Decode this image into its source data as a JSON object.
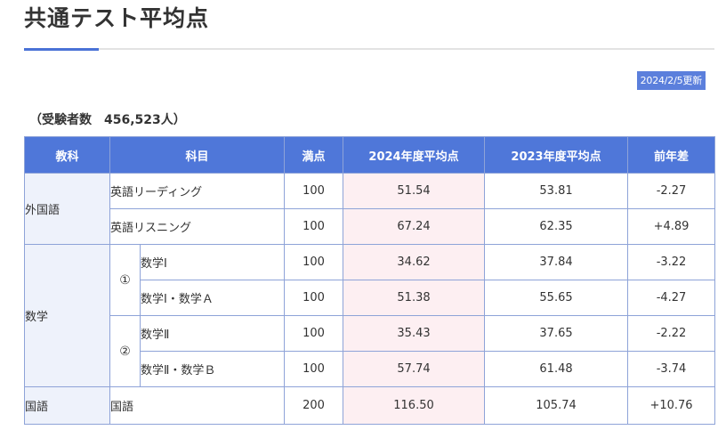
{
  "page": {
    "title": "共通テスト平均点",
    "update_badge": "2024/2/5更新",
    "examinees_label": "（受験者数",
    "examinees_count": "456,523人）"
  },
  "table": {
    "headers": [
      "教科",
      "科目",
      "満点",
      "2024年度平均点",
      "2023年度平均点",
      "前年差"
    ],
    "groups": {
      "foreign": "外国語",
      "math": "数学",
      "japanese": "国語"
    },
    "math_sections": [
      "①",
      "②"
    ],
    "rows": [
      {
        "subject": "英語リーディング",
        "full": "100",
        "avg2024": "51.54",
        "avg2023": "53.81",
        "diff": "-2.27"
      },
      {
        "subject": "英語リスニング",
        "full": "100",
        "avg2024": "67.24",
        "avg2023": "62.35",
        "diff": "+4.89"
      },
      {
        "subject": "数学Ⅰ",
        "full": "100",
        "avg2024": "34.62",
        "avg2023": "37.84",
        "diff": "-3.22"
      },
      {
        "subject": "数学Ⅰ・数学Ａ",
        "full": "100",
        "avg2024": "51.38",
        "avg2023": "55.65",
        "diff": "-4.27"
      },
      {
        "subject": "数学Ⅱ",
        "full": "100",
        "avg2024": "35.43",
        "avg2023": "37.65",
        "diff": "-2.22"
      },
      {
        "subject": "数学Ⅱ・数学Ｂ",
        "full": "100",
        "avg2024": "57.74",
        "avg2023": "61.48",
        "diff": "-3.74"
      },
      {
        "subject": "国語",
        "full": "200",
        "avg2024": "116.50",
        "avg2023": "105.74",
        "diff": "+10.76"
      }
    ]
  },
  "colors": {
    "accent": "#4a72d6",
    "header_bg": "#4f77d9",
    "category_bg": "#eef2fb",
    "highlight_bg": "#fdeff2",
    "border": "#8ea3d8"
  }
}
